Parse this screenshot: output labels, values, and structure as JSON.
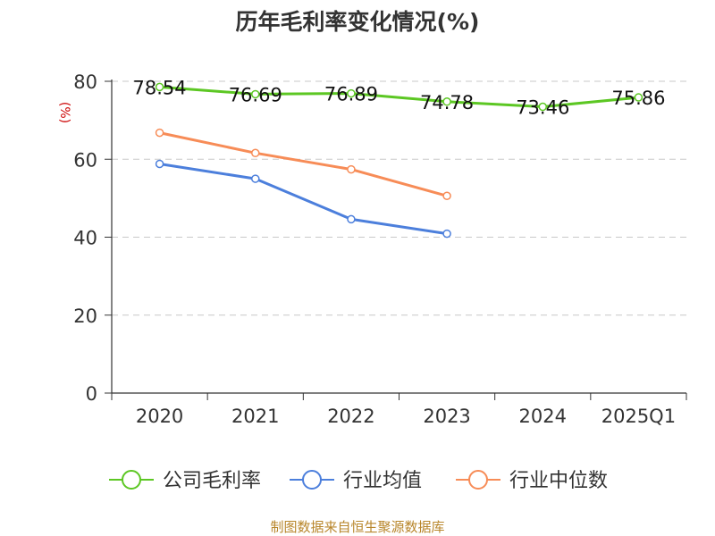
{
  "chart_data": {
    "type": "line",
    "title": "历年毛利率变化情况(%)",
    "ylabel": "(%)",
    "categories": [
      "2020",
      "2021",
      "2022",
      "2023",
      "2024",
      "2025Q1"
    ],
    "y_ticks": [
      "0",
      "20",
      "40",
      "60",
      "80"
    ],
    "ylim": [
      0,
      80
    ],
    "grid": true,
    "legend_placement": "bottom",
    "series": [
      {
        "name": "公司毛利率",
        "color": "#5cc723",
        "values": [
          78.54,
          76.69,
          76.89,
          74.78,
          73.46,
          75.86
        ],
        "labels": [
          "78.54",
          "76.69",
          "76.89",
          "74.78",
          "73.46",
          "75.86"
        ]
      },
      {
        "name": "行业均值",
        "color": "#4c7fdc",
        "values": [
          58.8,
          55.0,
          44.6,
          40.9,
          null,
          null
        ]
      },
      {
        "name": "行业中位数",
        "color": "#f78c57",
        "values": [
          66.8,
          61.6,
          57.4,
          50.6,
          null,
          null
        ]
      }
    ],
    "source": "制图数据来自恒生聚源数据库"
  }
}
